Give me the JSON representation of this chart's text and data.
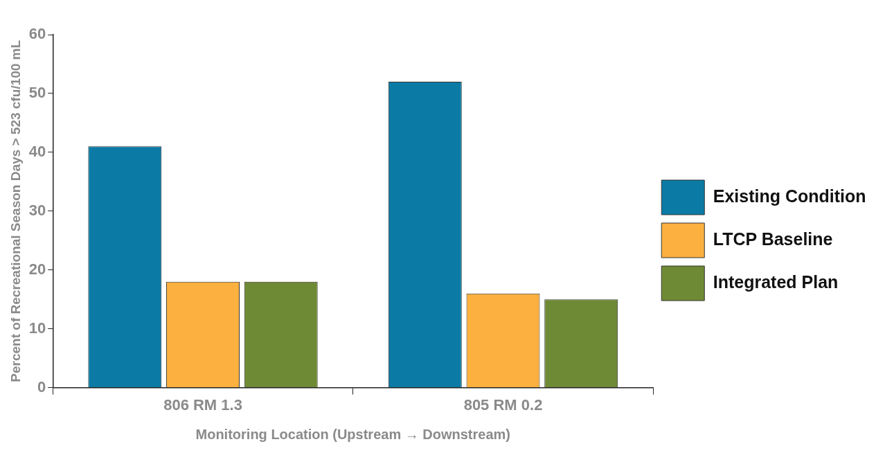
{
  "chart_data": {
    "type": "bar",
    "xlabel": "Monitoring Location (Upstream → Downstream)",
    "ylabel": "Percent of Recreational Season Days > 523 cfu/100 mL",
    "categories": [
      "806 RM 1.3",
      "805 RM 0.2"
    ],
    "series": [
      {
        "name": "Existing Condition",
        "color": "#0b7ba5",
        "values": [
          41,
          52
        ]
      },
      {
        "name": "LTCP Baseline",
        "color": "#fbb03f",
        "values": [
          18,
          16
        ]
      },
      {
        "name": "Integrated Plan",
        "color": "#6f8a34",
        "values": [
          18,
          15
        ]
      }
    ],
    "ylim": [
      0,
      60
    ],
    "yticks": [
      0,
      10,
      20,
      30,
      40,
      50,
      60
    ],
    "legend": "right"
  }
}
